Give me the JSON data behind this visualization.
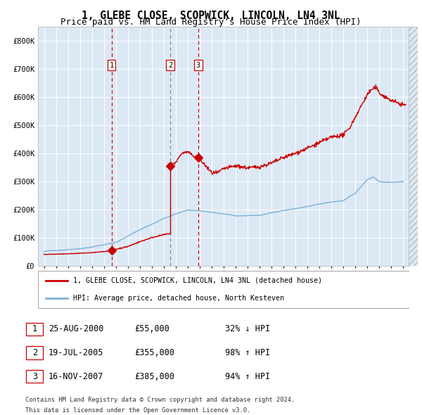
{
  "title": "1, GLEBE CLOSE, SCOPWICK, LINCOLN, LN4 3NL",
  "subtitle": "Price paid vs. HM Land Registry's House Price Index (HPI)",
  "xlim": [
    1994.5,
    2025.5
  ],
  "ylim": [
    0,
    850000
  ],
  "yticks": [
    0,
    100000,
    200000,
    300000,
    400000,
    500000,
    600000,
    700000,
    800000
  ],
  "ytick_labels": [
    "£0",
    "£100K",
    "£200K",
    "£300K",
    "£400K",
    "£500K",
    "£600K",
    "£700K",
    "£800K"
  ],
  "bg_color": "#dce9f5",
  "grid_color": "#ffffff",
  "hpi_color": "#7ab0d8",
  "price_color": "#cc0000",
  "marker_color": "#cc0000",
  "sale_points": [
    {
      "label": "1",
      "date_num": 2000.65,
      "price": 55000,
      "vline_color": "#dd0000",
      "vline_style": "dashed"
    },
    {
      "label": "2",
      "date_num": 2005.54,
      "price": 355000,
      "vline_color": "#888888",
      "vline_style": "dashed"
    },
    {
      "label": "3",
      "date_num": 2007.88,
      "price": 385000,
      "vline_color": "#dd0000",
      "vline_style": "dashed"
    }
  ],
  "legend_line1": "1, GLEBE CLOSE, SCOPWICK, LINCOLN, LN4 3NL (detached house)",
  "legend_line2": "HPI: Average price, detached house, North Kesteven",
  "table_rows": [
    {
      "num": "1",
      "date": "25-AUG-2000",
      "price": "£55,000",
      "hpi": "32% ↓ HPI"
    },
    {
      "num": "2",
      "date": "19-JUL-2005",
      "price": "£355,000",
      "hpi": "98% ↑ HPI"
    },
    {
      "num": "3",
      "date": "16-NOV-2007",
      "price": "£385,000",
      "hpi": "94% ↑ HPI"
    }
  ],
  "footer1": "Contains HM Land Registry data © Crown copyright and database right 2024.",
  "footer2": "This data is licensed under the Open Government Licence v3.0.",
  "title_fontsize": 10.5,
  "subtitle_fontsize": 9
}
